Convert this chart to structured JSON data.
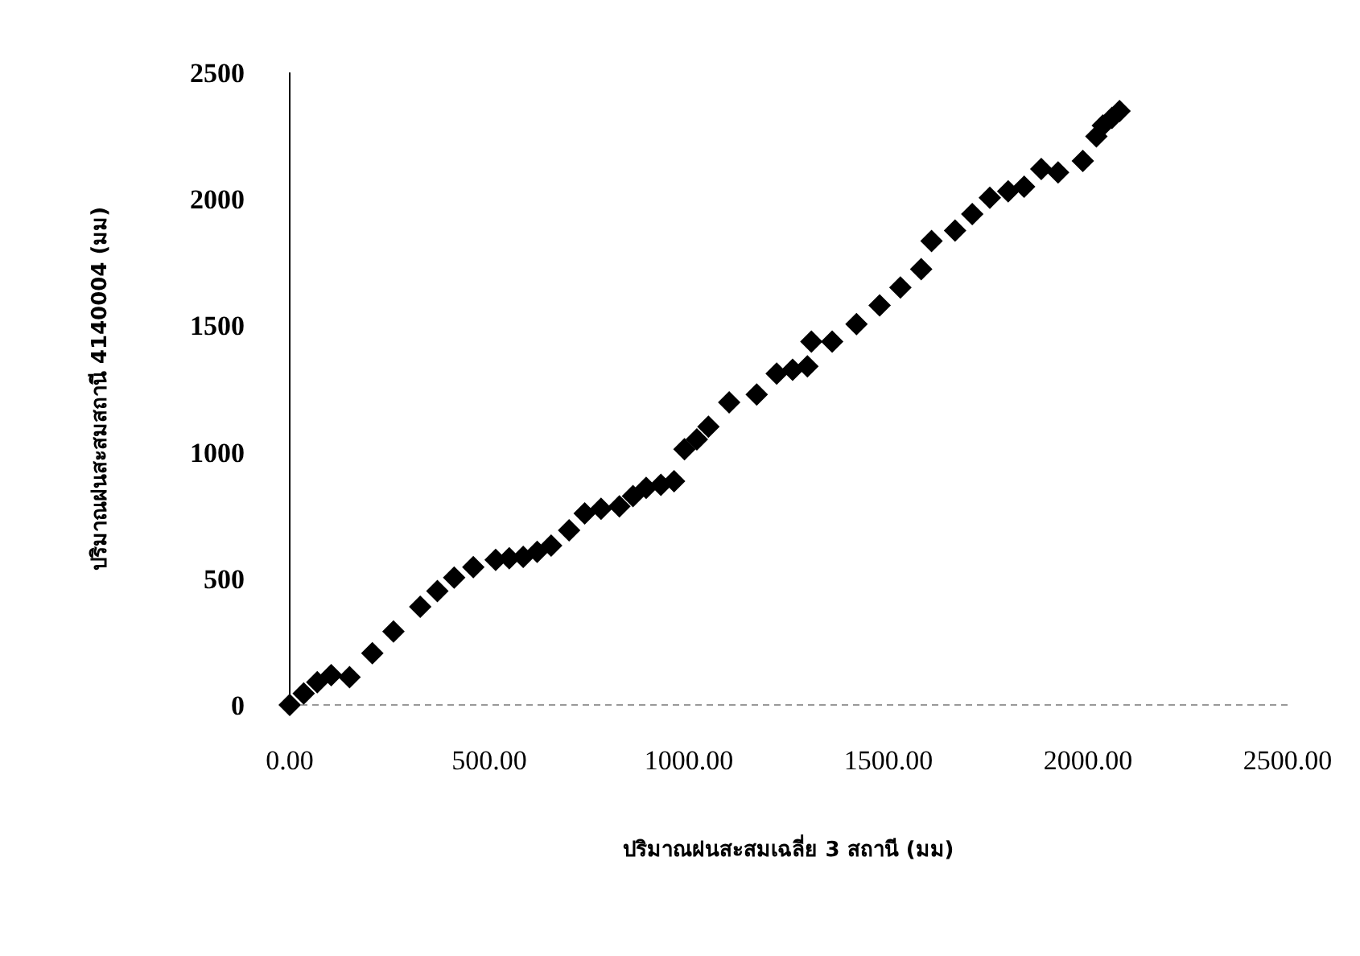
{
  "chart_data": {
    "type": "scatter",
    "xlabel": "ปริมาณฝนสะสมเฉลี่ย 3 สถานี (มม)",
    "ylabel": "ปริมาณฝนสะสมสถานี 4140004 (มม)",
    "xlim": [
      0,
      2500
    ],
    "ylim": [
      0,
      2500
    ],
    "xticks": [
      {
        "value": 0,
        "label": "0.00"
      },
      {
        "value": 500,
        "label": "500.00"
      },
      {
        "value": 1000,
        "label": "1000.00"
      },
      {
        "value": 1500,
        "label": "1500.00"
      },
      {
        "value": 2000,
        "label": "2000.00"
      },
      {
        "value": 2500,
        "label": "2500.00"
      }
    ],
    "yticks": [
      0,
      500,
      1000,
      1500,
      2000,
      2500
    ],
    "marker": "diamond",
    "grid": false,
    "series": [
      {
        "color": "#000000",
        "x": [
          0,
          35,
          69,
          104,
          150,
          207,
          260,
          327,
          370,
          412,
          460,
          516,
          550,
          585,
          620,
          655,
          700,
          739,
          780,
          826,
          860,
          893,
          930,
          963,
          989,
          1020,
          1049,
          1101,
          1170,
          1220,
          1260,
          1297,
          1307,
          1359,
          1420,
          1478,
          1530,
          1582,
          1608,
          1667,
          1710,
          1754,
          1800,
          1840,
          1883,
          1925,
          1987,
          2021,
          2037,
          2060,
          2079
        ],
        "values": [
          0,
          45,
          90,
          118,
          110,
          204,
          290,
          388,
          450,
          503,
          545,
          573,
          580,
          585,
          605,
          630,
          690,
          757,
          775,
          785,
          825,
          858,
          870,
          884,
          1011,
          1050,
          1100,
          1196,
          1227,
          1310,
          1325,
          1338,
          1436,
          1436,
          1505,
          1579,
          1650,
          1722,
          1834,
          1875,
          1940,
          2005,
          2030,
          2048,
          2118,
          2105,
          2150,
          2247,
          2290,
          2320,
          2347
        ]
      }
    ]
  }
}
